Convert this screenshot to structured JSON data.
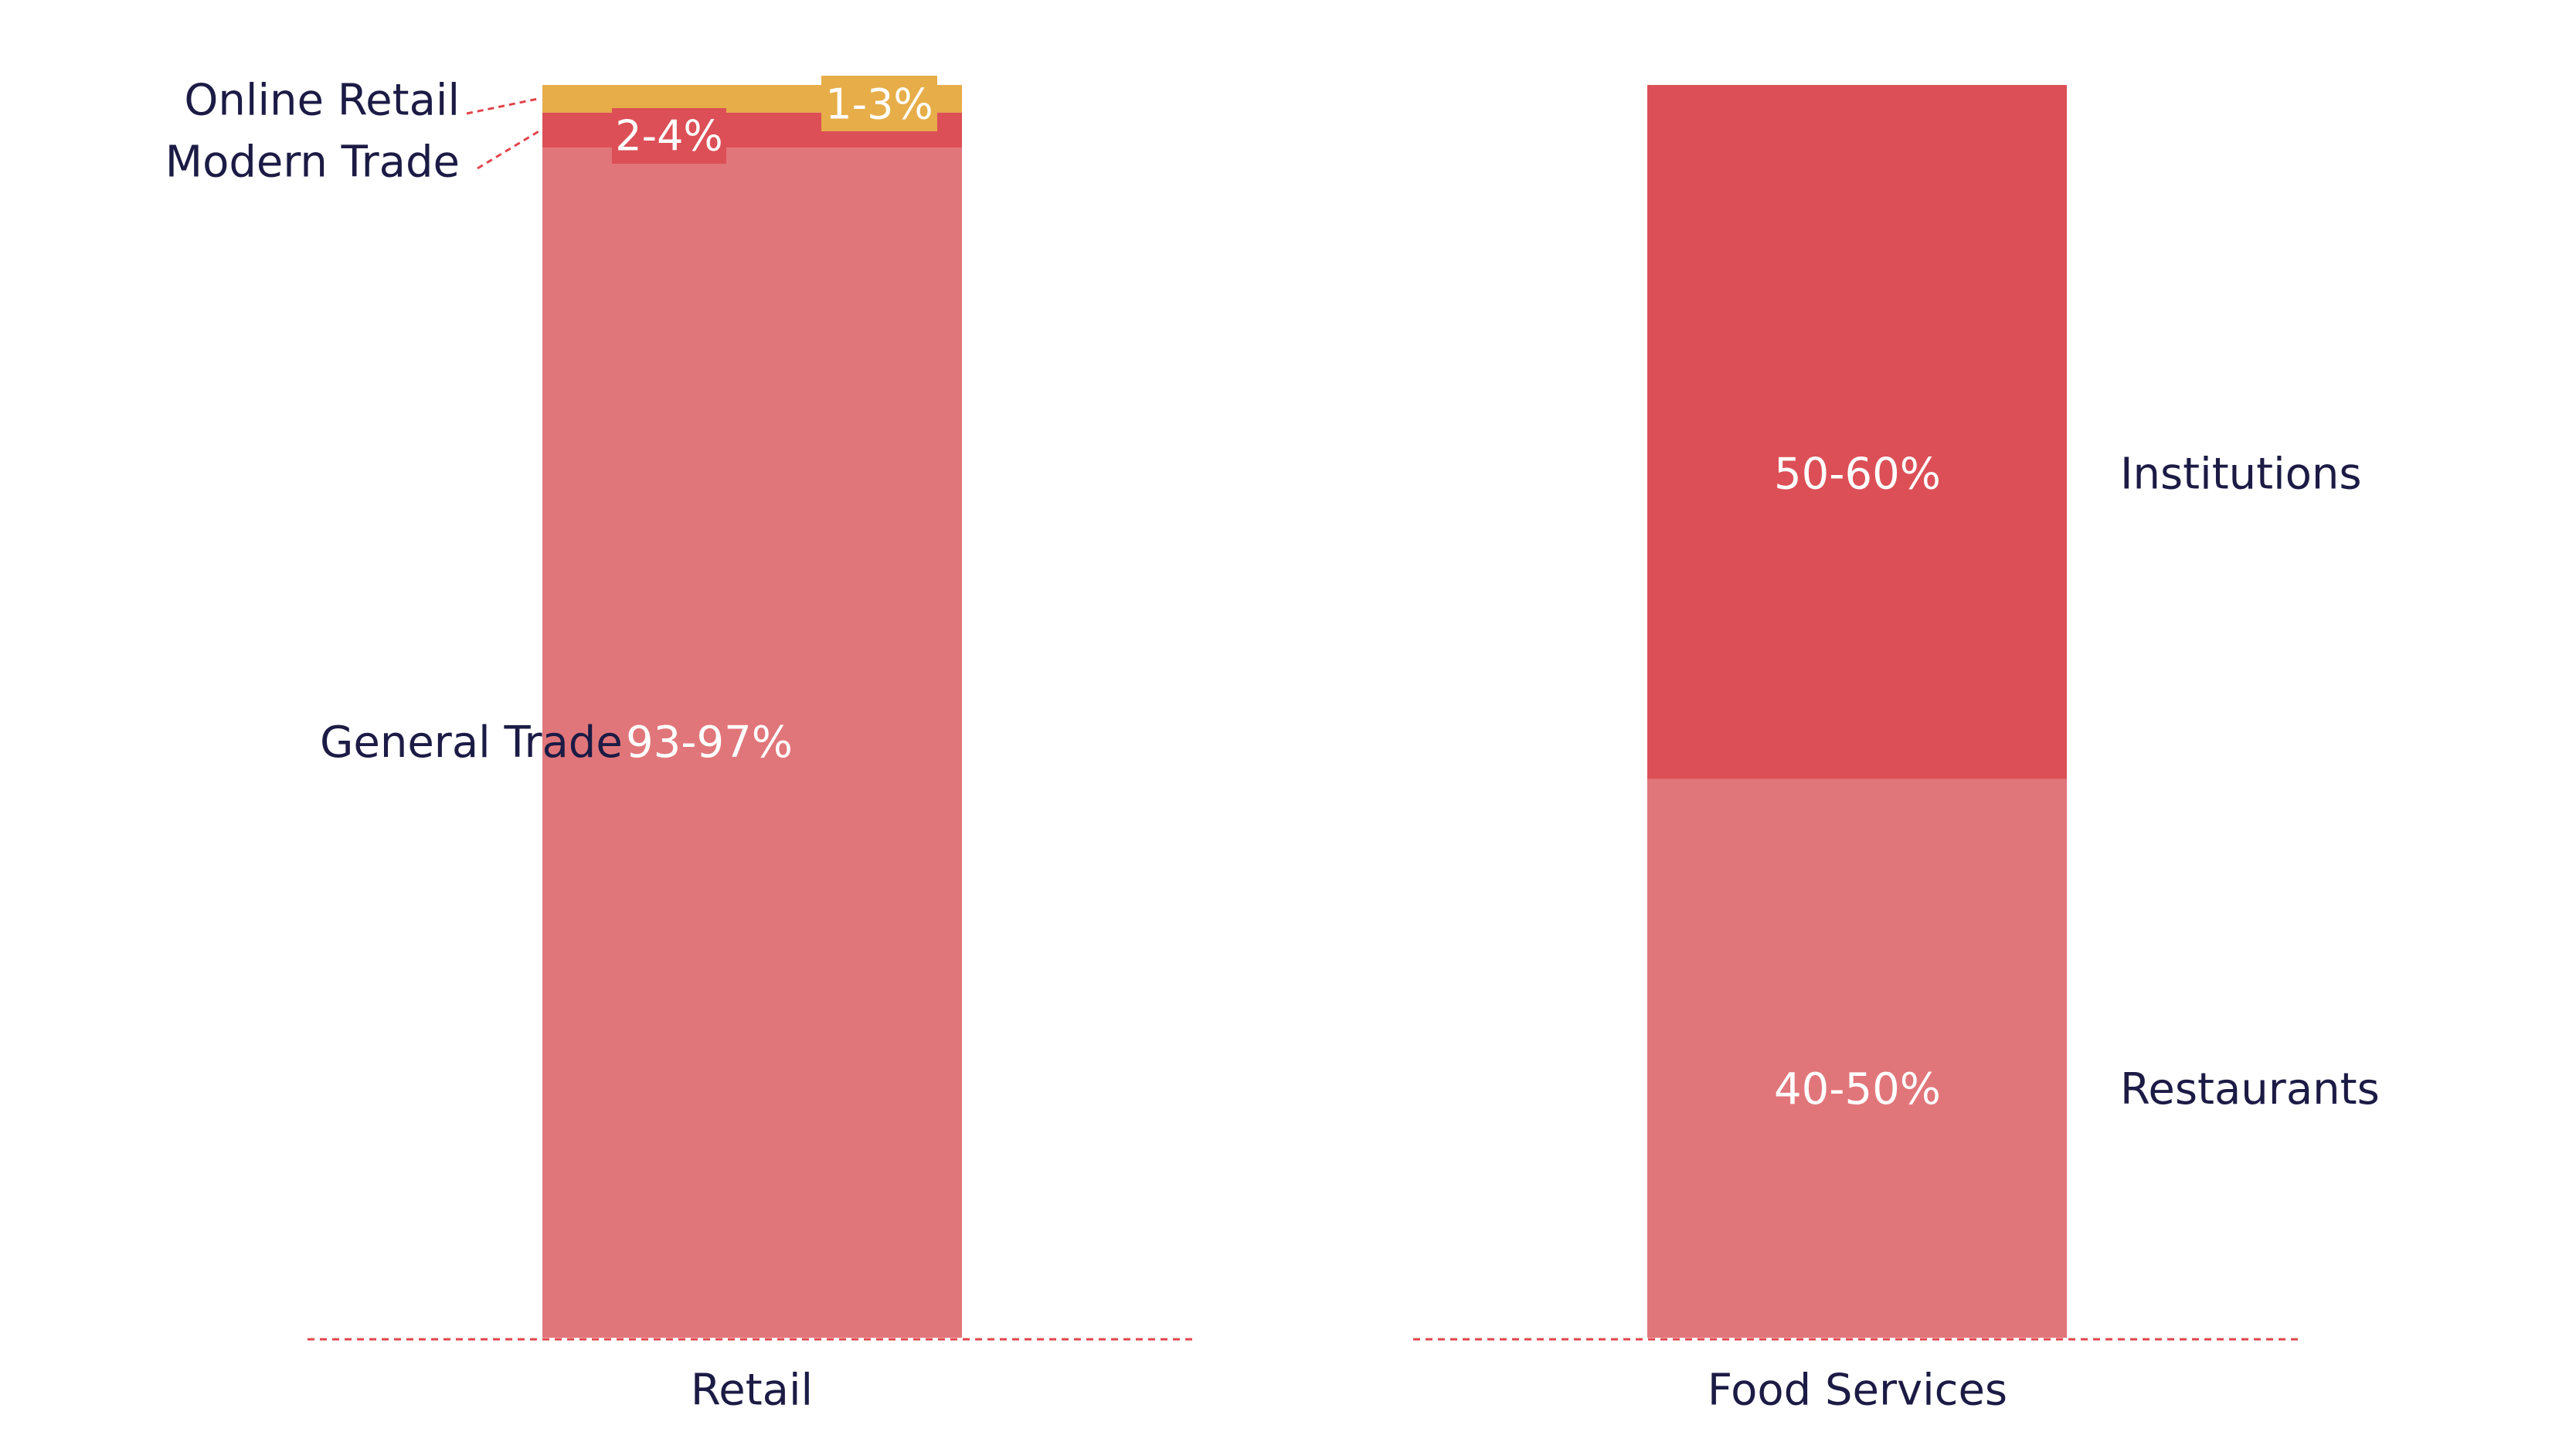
{
  "colors": {
    "general_trade": "#e1767a",
    "modern_trade": "#dc4f56",
    "online_retail": "#e7ad48",
    "restaurants": "#e1767a",
    "institutions": "#dc4f56",
    "dark_text": "#1c1b45",
    "white_text": "#ffffff",
    "baseline": "#e0454c"
  },
  "chart_data": {
    "type": "bar",
    "stacked": true,
    "value_unit": "%",
    "ylim": [
      0,
      100
    ],
    "grid": false,
    "categories": [
      "Retail",
      "Food Services"
    ],
    "bars": [
      {
        "category": "Retail",
        "segments": [
          {
            "name": "General Trade",
            "value_label": "93-97%",
            "value": 95,
            "color": "#e1767a"
          },
          {
            "name": "Modern Trade",
            "value_label": "2-4%",
            "value": 2.8,
            "color": "#dc4f56"
          },
          {
            "name": "Online Retail",
            "value_label": "1-3%",
            "value": 2.2,
            "color": "#e7ad48"
          }
        ]
      },
      {
        "category": "Food Services",
        "segments": [
          {
            "name": "Restaurants",
            "value_label": "40-50%",
            "value": 44.6,
            "color": "#e1767a"
          },
          {
            "name": "Institutions",
            "value_label": "50-60%",
            "value": 55.4,
            "color": "#dc4f56"
          }
        ]
      }
    ]
  }
}
